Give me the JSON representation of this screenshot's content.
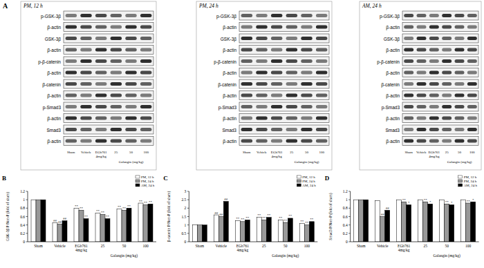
{
  "panel_labels": [
    "A",
    "B",
    "C",
    "D"
  ],
  "blots": {
    "panels": [
      {
        "title": "PM, 12 h"
      },
      {
        "title": "PM, 24 h"
      },
      {
        "title": "AM, 24 h"
      }
    ],
    "rows": [
      "p-GSK-3β",
      "β-actin",
      "GSK-3β",
      "β-actin",
      "p-β-catenin",
      "β-actin",
      "β-catenin",
      "β-actin",
      "p-Smad3",
      "β-actin",
      "Smad3",
      "β-actin"
    ],
    "lanes": [
      "Sham",
      "Vehicle",
      "EGb761 4mg/kg",
      "25",
      "50",
      "100"
    ],
    "lane_group": "Galangin (mg/kg)"
  },
  "chart_data": [
    {
      "type": "bar",
      "ylabel": "GSK-3β P/Non-P (fold of sham)",
      "categories": [
        "Sham",
        "Vehicle",
        "EGb761 4mg/kg",
        "25",
        "50",
        "100"
      ],
      "xlabel": "Galangin (mg/kg)",
      "ylim": [
        0,
        1.2
      ],
      "yticks": [
        0,
        0.2,
        0.4,
        0.6,
        0.8,
        1,
        1.2
      ],
      "grid": false,
      "legend": "upper right",
      "series": [
        {
          "name": "PM, 12 h",
          "color": "#ffffff",
          "values": [
            1,
            0.45,
            0.8,
            0.68,
            0.78,
            0.92
          ],
          "significance": [
            null,
            "##",
            "**",
            "**",
            "**",
            "**"
          ]
        },
        {
          "name": "PM, 24 h",
          "color": "#999999",
          "values": [
            1,
            0.42,
            0.75,
            0.65,
            0.75,
            0.88
          ],
          "significance": [
            null,
            "##",
            "**",
            "**",
            "**",
            "**"
          ]
        },
        {
          "name": "AM, 24 h",
          "color": "#000000",
          "values": [
            1,
            0.5,
            0.55,
            0.55,
            0.8,
            0.9
          ],
          "significance": [
            null,
            "##",
            "**",
            "**",
            "**",
            "**"
          ]
        }
      ]
    },
    {
      "type": "bar",
      "ylabel": "β-catenin P/Non-P (fold of sham)",
      "categories": [
        "Sham",
        "Vehicle",
        "EGb761 4mg/kg",
        "25",
        "50",
        "100"
      ],
      "xlabel": "Galangin (mg/kg)",
      "ylim": [
        0,
        3
      ],
      "yticks": [
        0,
        0.5,
        1,
        1.5,
        2,
        2.5,
        3
      ],
      "grid": false,
      "legend": "upper right",
      "series": [
        {
          "name": "PM, 12 h",
          "color": "#ffffff",
          "values": [
            1,
            1.6,
            1.25,
            1.45,
            1.3,
            1.1
          ],
          "significance": [
            null,
            "##",
            "**",
            "**",
            "**",
            "**"
          ]
        },
        {
          "name": "PM, 24 h",
          "color": "#999999",
          "values": [
            1,
            1.5,
            1.2,
            1.3,
            1.15,
            1.0
          ],
          "significance": [
            null,
            "##",
            "**",
            "**",
            "**",
            "**"
          ]
        },
        {
          "name": "AM, 24 h",
          "color": "#000000",
          "values": [
            1,
            2.4,
            1.3,
            1.45,
            1.4,
            1.2
          ],
          "significance": [
            null,
            "##",
            "**",
            "**",
            "**",
            "**"
          ]
        }
      ]
    },
    {
      "type": "bar",
      "ylabel": "Smad3 P/Non-P (fold of sham)",
      "categories": [
        "Sham",
        "Vehicle",
        "EGb761 4mg/kg",
        "25",
        "50",
        "100"
      ],
      "xlabel": "Galangin (mg/kg)",
      "ylim": [
        0,
        1.2
      ],
      "yticks": [
        0,
        0.2,
        0.4,
        0.6,
        0.8,
        1,
        1.2
      ],
      "grid": false,
      "legend": "upper right",
      "series": [
        {
          "name": "PM, 12 h",
          "color": "#ffffff",
          "values": [
            1,
            0.98,
            1.0,
            1.0,
            1.0,
            1.0
          ],
          "significance": [
            null,
            null,
            null,
            null,
            null,
            null
          ]
        },
        {
          "name": "PM, 24 h",
          "color": "#999999",
          "values": [
            1,
            0.6,
            0.95,
            0.95,
            0.9,
            0.92
          ],
          "significance": [
            null,
            "##",
            "**",
            "**",
            "**",
            "**"
          ]
        },
        {
          "name": "AM, 24 h",
          "color": "#000000",
          "values": [
            1,
            0.75,
            0.88,
            0.9,
            0.88,
            0.95
          ],
          "significance": [
            null,
            "##",
            "*",
            "*",
            "*",
            "*"
          ]
        }
      ]
    }
  ]
}
